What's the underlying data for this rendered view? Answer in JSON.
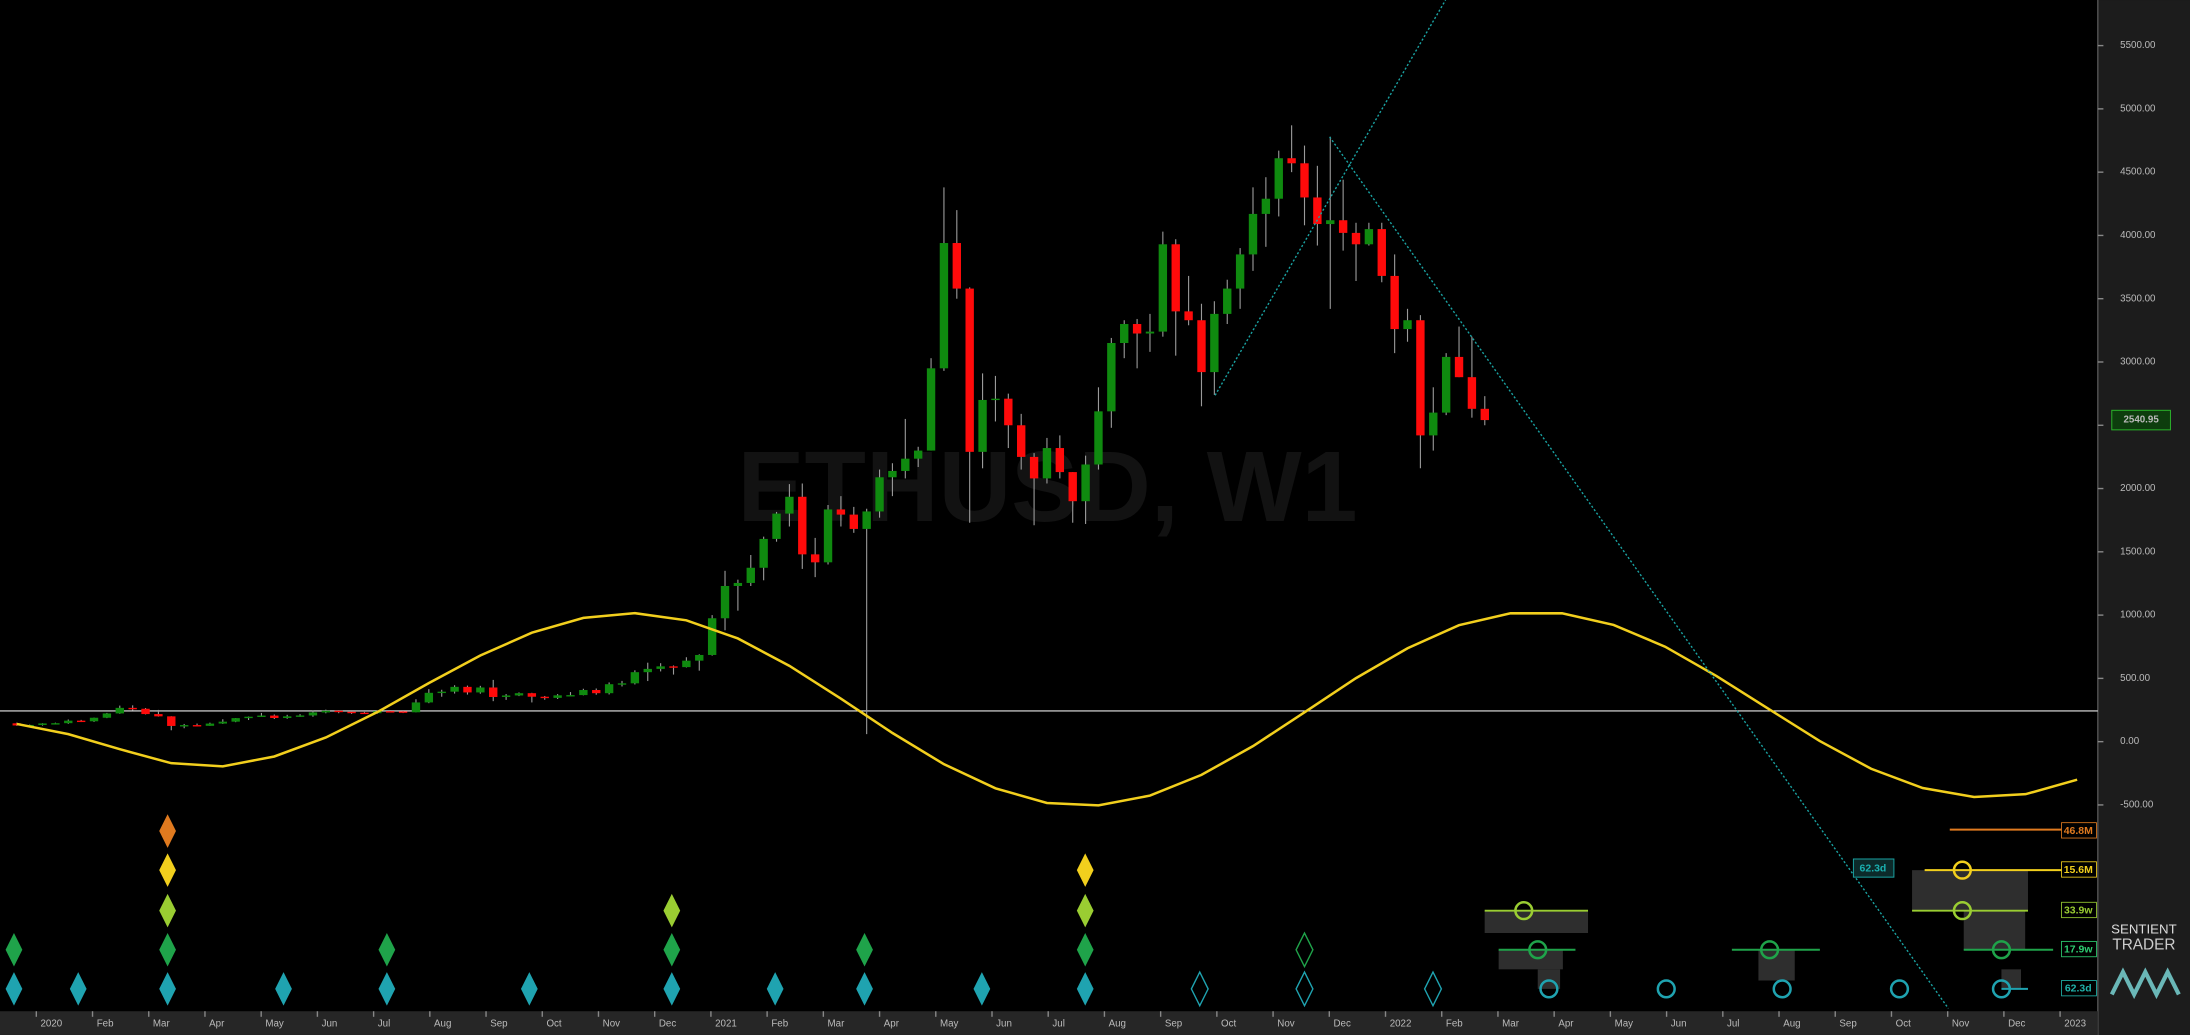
{
  "chart_data": {
    "type": "candlestick",
    "title": "ETHUSD, W1",
    "open": [
      145,
      128,
      132,
      144,
      146,
      166,
      161,
      189,
      223,
      267,
      260,
      218,
      200,
      124,
      131,
      125,
      143,
      158,
      186,
      197,
      206,
      187,
      200,
      207,
      231,
      244,
      236,
      229,
      225,
      241,
      239,
      232,
      310,
      386,
      395,
      433,
      389,
      428,
      353,
      365,
      383,
      355,
      346,
      366,
      368,
      408,
      383,
      454,
      461,
      549,
      575,
      595,
      589,
      640,
      685,
      975,
      1230,
      1254,
      1374,
      1602,
      1802,
      1935,
      1480,
      1417,
      1835,
      1794,
      1681,
      1819,
      2089,
      2139,
      2236,
      2300,
      2950,
      3940,
      3580,
      2290,
      2700,
      2710,
      2500,
      2250,
      2080,
      2320,
      2130,
      1900,
      2190,
      2610,
      3150,
      3300,
      3225,
      3240,
      3930,
      3400,
      3330,
      2920,
      3380,
      3580,
      3850,
      4170,
      4290,
      4610,
      4570,
      4300,
      4090,
      4120,
      4020,
      3930,
      4050,
      3680,
      3260,
      3330,
      2420,
      2600,
      3040,
      2880,
      2630
    ],
    "high": [
      150,
      135,
      146,
      150,
      175,
      172,
      190,
      227,
      285,
      287,
      266,
      251,
      201,
      140,
      143,
      150,
      177,
      187,
      199,
      227,
      215,
      212,
      217,
      245,
      253,
      249,
      242,
      235,
      246,
      250,
      242,
      335,
      415,
      410,
      446,
      443,
      441,
      488,
      376,
      389,
      386,
      361,
      376,
      392,
      418,
      420,
      468,
      480,
      564,
      624,
      620,
      602,
      667,
      690,
      1000,
      1350,
      1280,
      1475,
      1620,
      1815,
      2035,
      2040,
      1610,
      1870,
      1940,
      1855,
      1840,
      2150,
      2200,
      2550,
      2330,
      3030,
      4380,
      4200,
      3590,
      2910,
      2890,
      2750,
      2590,
      2280,
      2400,
      2420,
      2130,
      2260,
      2800,
      3190,
      3330,
      3340,
      3380,
      4030,
      3970,
      3680,
      3460,
      3480,
      3650,
      3900,
      4380,
      4460,
      4670,
      4870,
      4710,
      4550,
      4780,
      4440,
      4100,
      4100,
      4100,
      3850,
      3420,
      3370,
      2800,
      3070,
      3280,
      3200,
      2730
    ],
    "low": [
      125,
      124,
      127,
      136,
      141,
      155,
      156,
      186,
      220,
      246,
      215,
      198,
      90,
      106,
      122,
      125,
      140,
      154,
      171,
      195,
      179,
      181,
      196,
      197,
      224,
      225,
      219,
      220,
      221,
      234,
      226,
      232,
      304,
      355,
      380,
      372,
      379,
      320,
      330,
      360,
      310,
      331,
      337,
      363,
      366,
      371,
      373,
      436,
      452,
      479,
      555,
      530,
      586,
      561,
      680,
      880,
      1035,
      1230,
      1275,
      1580,
      1700,
      1365,
      1300,
      1400,
      1700,
      1650,
      60,
      1770,
      1940,
      2080,
      2170,
      2300,
      2930,
      3500,
      1730,
      2160,
      2530,
      2320,
      2150,
      1710,
      2040,
      2080,
      1730,
      1720,
      2150,
      2480,
      3030,
      2950,
      3080,
      3200,
      3050,
      3290,
      2650,
      2740,
      3300,
      3420,
      3720,
      3910,
      4150,
      4500,
      4080,
      3920,
      3420,
      3880,
      3640,
      3920,
      3630,
      3070,
      3160,
      2160,
      2300,
      2580,
      2880,
      2560,
      2500
    ],
    "close": [
      128,
      132,
      144,
      146,
      166,
      161,
      189,
      223,
      267,
      260,
      218,
      200,
      124,
      131,
      125,
      143,
      158,
      186,
      197,
      206,
      187,
      200,
      207,
      231,
      244,
      236,
      229,
      225,
      241,
      239,
      232,
      310,
      386,
      395,
      433,
      389,
      428,
      353,
      365,
      383,
      355,
      346,
      366,
      368,
      408,
      383,
      454,
      461,
      549,
      575,
      595,
      589,
      640,
      685,
      975,
      1230,
      1254,
      1374,
      1602,
      1802,
      1935,
      1480,
      1417,
      1835,
      1794,
      1681,
      1819,
      2089,
      2139,
      2236,
      2300,
      2950,
      3940,
      3580,
      2290,
      2700,
      2710,
      2500,
      2250,
      2080,
      2320,
      2130,
      1900,
      2190,
      2610,
      3150,
      3300,
      3225,
      3240,
      3930,
      3400,
      3330,
      2920,
      3380,
      3580,
      3850,
      4170,
      4290,
      4610,
      4570,
      4300,
      4090,
      4120,
      4020,
      3930,
      4050,
      3680,
      3260,
      3330,
      2420,
      2600,
      3040,
      2880,
      2630,
      2540.95
    ],
    "up_color": "#0f8a0f",
    "down_color": "#ff0a0a",
    "cycle": {
      "color": "#f2cf1d",
      "values": [
        140,
        60,
        -60,
        -170,
        -195,
        -117,
        33,
        234,
        462,
        681,
        861,
        978,
        1015,
        959,
        816,
        599,
        340,
        68,
        -178,
        -369,
        -484,
        -503,
        -426,
        -263,
        -35,
        232,
        502,
        738,
        920,
        1014,
        1014,
        922,
        750,
        519,
        261,
        6,
        -214,
        -367,
        -437,
        -415,
        -300
      ]
    },
    "hline": {
      "value": 243,
      "color": "#e8e8e8"
    },
    "ylim": [
      -2130,
      5860
    ],
    "yticks": [
      {
        "value": 5500,
        "label": "5500.00"
      },
      {
        "value": 5000,
        "label": "5000.00"
      },
      {
        "value": 4500,
        "label": "4500.00"
      },
      {
        "value": 4000,
        "label": "4000.00"
      },
      {
        "value": 3500,
        "label": "3500.00"
      },
      {
        "value": 3000,
        "label": "3000.00"
      },
      {
        "value": 2500,
        "label": "2500.00"
      },
      {
        "value": 2000,
        "label": "2000.00"
      },
      {
        "value": 1500,
        "label": "1500.00"
      },
      {
        "value": 1000,
        "label": "1000.00"
      },
      {
        "value": 500,
        "label": "500.00"
      },
      {
        "value": 0,
        "label": "0.00"
      },
      {
        "value": -500,
        "label": "-500.00"
      }
    ],
    "x_labels": [
      "2020",
      "Feb",
      "Mar",
      "Apr",
      "May",
      "Jun",
      "Jul",
      "Aug",
      "Sep",
      "Oct",
      "Nov",
      "Dec",
      "2021",
      "Feb",
      "Mar",
      "Apr",
      "May",
      "Jun",
      "Jul",
      "Aug",
      "Sep",
      "Oct",
      "Nov",
      "Dec",
      "2022",
      "Feb",
      "Mar",
      "Apr",
      "May",
      "Jun",
      "Jul",
      "Aug",
      "Sep",
      "Oct",
      "Nov",
      "Dec",
      "2023"
    ],
    "cycle_labels": [
      "46.8M",
      "15.6M",
      "33.9w",
      "17.9w",
      "62.3d"
    ],
    "trendline_label": "62.3d",
    "brand": [
      "SENTIENT",
      "TRADER"
    ]
  }
}
